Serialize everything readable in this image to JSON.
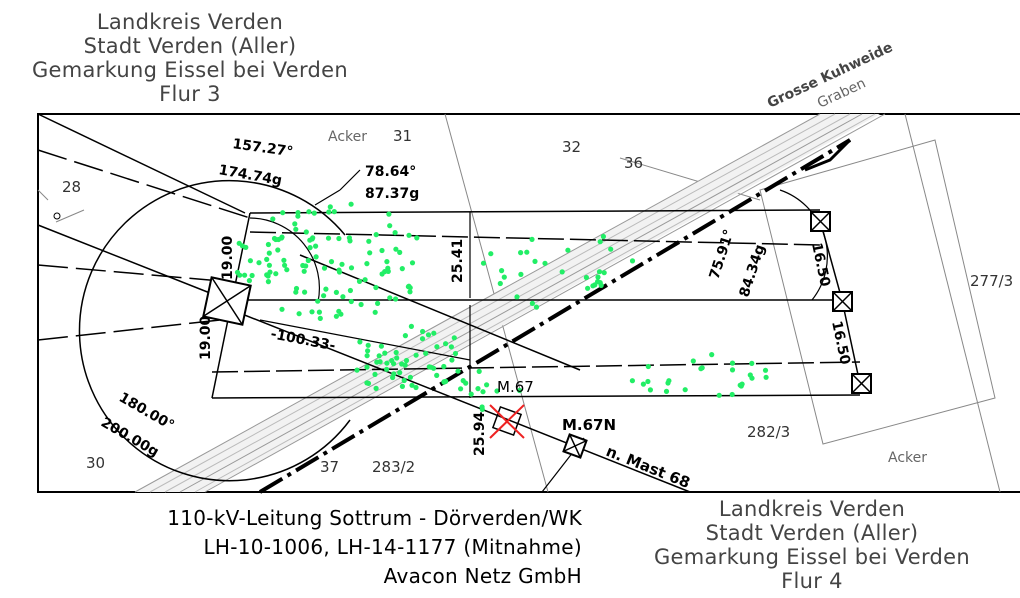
{
  "header_top": {
    "line1": "Landkreis Verden",
    "line2": "Stadt Verden (Aller)",
    "line3": "Gemarkung Eissel bei Verden",
    "line4": "Flur 3"
  },
  "header_bottom": {
    "line1": "Landkreis Verden",
    "line2": "Stadt Verden (Aller)",
    "line3": "Gemarkung Eissel bei Verden",
    "line4": "Flur 4"
  },
  "title_block": {
    "line1": "110-kV-Leitung Sottrum - Dörverden/WK",
    "line2": "LH-10-1006, LH-14-1177 (Mitnahme)",
    "line3": "Avacon Netz GmbH"
  },
  "parcels": {
    "p28": "28",
    "p30": "30",
    "p31": "31",
    "p32": "32",
    "p36": "36",
    "p37": "37",
    "p282_2": "283/2",
    "p282_3": "282/3",
    "p277_3": "277/3"
  },
  "land_use": {
    "acker_top": "Acker",
    "acker_bottom": "Acker",
    "graben": "Graben",
    "grosse_kuhweide": "Grosse Kuhweide"
  },
  "angles": {
    "a1": "157.27°",
    "a2": "174.74g",
    "a3": "78.64°",
    "a4": "87.37g",
    "a5": "75.91°",
    "a6": "84.34g",
    "a7": "180.00°",
    "a8": "200.00g"
  },
  "dimensions": {
    "d1": "19.00",
    "d2": "19.00",
    "d3": "25.41",
    "d4": "-100.33-",
    "d5": "25.94",
    "d6": "16.50",
    "d7": "16.50"
  },
  "masts": {
    "m67": "M.67",
    "m67n": "M.67N",
    "n_mast": "n. Mast 68"
  },
  "colors": {
    "points": "#22ee66",
    "demolish": "#ee2222",
    "line": "#000000",
    "grey": "#888888"
  }
}
